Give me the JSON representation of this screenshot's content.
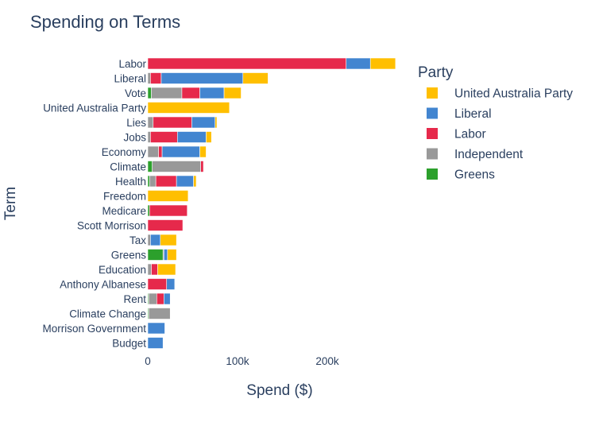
{
  "chart_data": {
    "type": "bar",
    "orientation": "horizontal",
    "stacked": true,
    "title": "Spending on Terms",
    "xlabel": "Spend ($)",
    "ylabel": "Term",
    "xlim": [
      0,
      290000
    ],
    "xticks": [
      0,
      100000,
      200000
    ],
    "xtick_labels": [
      "0",
      "100k",
      "200k"
    ],
    "grid": false,
    "legend_title": "Party",
    "legend_position": "right",
    "categories": [
      "Labor",
      "Liberal",
      "Vote",
      "United Australia Party",
      "Lies",
      "Jobs",
      "Economy",
      "Climate",
      "Health",
      "Freedom",
      "Medicare",
      "Scott Morrison",
      "Tax",
      "Greens",
      "Education",
      "Anthony Albanese",
      "Rent",
      "Climate Change",
      "Morrison Government",
      "Budget"
    ],
    "series": [
      {
        "name": "Greens",
        "color": "#2ca02c",
        "values": [
          0,
          0,
          4000,
          0,
          0,
          0,
          0,
          5000,
          2000,
          0,
          2000,
          0,
          0,
          17000,
          0,
          0,
          1000,
          1000,
          0,
          0
        ]
      },
      {
        "name": "Independent",
        "color": "#999999",
        "values": [
          0,
          3000,
          34000,
          0,
          6000,
          3000,
          12000,
          54000,
          7000,
          0,
          0,
          0,
          3000,
          1000,
          4000,
          0,
          9000,
          24000,
          0,
          0
        ]
      },
      {
        "name": "Labor",
        "color": "#e6294b",
        "values": [
          221000,
          12000,
          20000,
          0,
          43000,
          30000,
          4000,
          3000,
          23000,
          0,
          42000,
          39000,
          0,
          0,
          7000,
          21000,
          8000,
          0,
          0,
          0
        ]
      },
      {
        "name": "Liberal",
        "color": "#4285d0",
        "values": [
          27000,
          91000,
          27000,
          0,
          26000,
          32000,
          42000,
          0,
          19000,
          0,
          0,
          0,
          11000,
          4000,
          0,
          9000,
          7000,
          0,
          19000,
          17000
        ]
      },
      {
        "name": "United Australia Party",
        "color": "#ffbf00",
        "values": [
          28000,
          28000,
          19000,
          91000,
          2000,
          6000,
          7000,
          0,
          3000,
          45000,
          0,
          0,
          18000,
          10000,
          20000,
          0,
          0,
          0,
          0,
          0
        ]
      }
    ],
    "legend_order": [
      "United Australia Party",
      "Liberal",
      "Labor",
      "Independent",
      "Greens"
    ]
  }
}
